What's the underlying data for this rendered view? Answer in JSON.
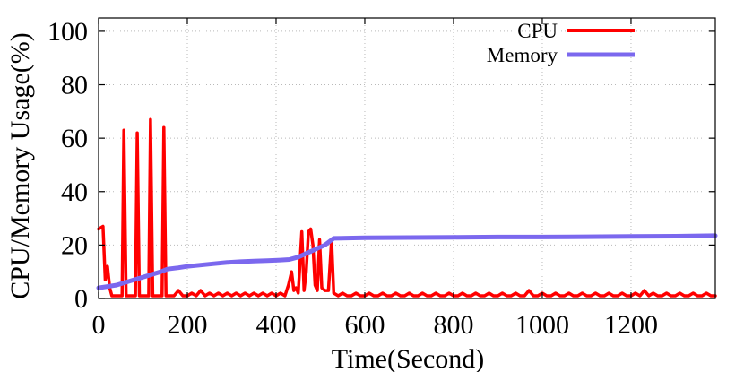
{
  "chart_data": {
    "type": "line",
    "xlabel": "Time(Second)",
    "ylabel": "CPU/Memory Usage(%)",
    "xlim": [
      0,
      1390
    ],
    "ylim": [
      0,
      105
    ],
    "x_ticks": [
      0,
      200,
      400,
      600,
      800,
      1000,
      1200
    ],
    "y_ticks": [
      0,
      20,
      40,
      60,
      80,
      100
    ],
    "grid": true,
    "legend_position": "top-right",
    "series": [
      {
        "name": "CPU",
        "color": "#ff0000",
        "points": [
          [
            0,
            26
          ],
          [
            10,
            27
          ],
          [
            15,
            7
          ],
          [
            20,
            12
          ],
          [
            25,
            4
          ],
          [
            30,
            1
          ],
          [
            35,
            1
          ],
          [
            40,
            1
          ],
          [
            45,
            1
          ],
          [
            50,
            1
          ],
          [
            53,
            1
          ],
          [
            57,
            63
          ],
          [
            62,
            1
          ],
          [
            70,
            1
          ],
          [
            78,
            1
          ],
          [
            83,
            1
          ],
          [
            87,
            62
          ],
          [
            92,
            1
          ],
          [
            100,
            1
          ],
          [
            108,
            1
          ],
          [
            113,
            1
          ],
          [
            117,
            67
          ],
          [
            122,
            1
          ],
          [
            130,
            1
          ],
          [
            138,
            1
          ],
          [
            143,
            1
          ],
          [
            147,
            64
          ],
          [
            152,
            1
          ],
          [
            160,
            1
          ],
          [
            170,
            1
          ],
          [
            180,
            3
          ],
          [
            190,
            1
          ],
          [
            200,
            1
          ],
          [
            210,
            2
          ],
          [
            220,
            1
          ],
          [
            230,
            3
          ],
          [
            240,
            1
          ],
          [
            250,
            2
          ],
          [
            260,
            1
          ],
          [
            270,
            2
          ],
          [
            280,
            1
          ],
          [
            290,
            2
          ],
          [
            300,
            1
          ],
          [
            310,
            2
          ],
          [
            320,
            1
          ],
          [
            330,
            2
          ],
          [
            340,
            1
          ],
          [
            350,
            2
          ],
          [
            360,
            1
          ],
          [
            370,
            2
          ],
          [
            380,
            1
          ],
          [
            390,
            2
          ],
          [
            400,
            1
          ],
          [
            410,
            2
          ],
          [
            420,
            1
          ],
          [
            428,
            5
          ],
          [
            435,
            10
          ],
          [
            440,
            3
          ],
          [
            445,
            4
          ],
          [
            450,
            2
          ],
          [
            458,
            25
          ],
          [
            463,
            3
          ],
          [
            468,
            10
          ],
          [
            473,
            25
          ],
          [
            478,
            26
          ],
          [
            483,
            20
          ],
          [
            488,
            5
          ],
          [
            493,
            3
          ],
          [
            498,
            22
          ],
          [
            503,
            4
          ],
          [
            510,
            3
          ],
          [
            518,
            3
          ],
          [
            525,
            22
          ],
          [
            530,
            2
          ],
          [
            540,
            1
          ],
          [
            550,
            2
          ],
          [
            560,
            1
          ],
          [
            570,
            1
          ],
          [
            580,
            2
          ],
          [
            590,
            1
          ],
          [
            600,
            1
          ],
          [
            610,
            2
          ],
          [
            620,
            1
          ],
          [
            630,
            1
          ],
          [
            640,
            2
          ],
          [
            650,
            1
          ],
          [
            660,
            1
          ],
          [
            670,
            2
          ],
          [
            680,
            1
          ],
          [
            690,
            1
          ],
          [
            700,
            2
          ],
          [
            710,
            1
          ],
          [
            720,
            1
          ],
          [
            730,
            2
          ],
          [
            740,
            1
          ],
          [
            750,
            1
          ],
          [
            760,
            2
          ],
          [
            770,
            1
          ],
          [
            780,
            1
          ],
          [
            790,
            2
          ],
          [
            800,
            1
          ],
          [
            810,
            1
          ],
          [
            820,
            2
          ],
          [
            830,
            1
          ],
          [
            840,
            1
          ],
          [
            850,
            2
          ],
          [
            860,
            1
          ],
          [
            870,
            1
          ],
          [
            880,
            2
          ],
          [
            890,
            1
          ],
          [
            900,
            1
          ],
          [
            910,
            2
          ],
          [
            920,
            1
          ],
          [
            930,
            1
          ],
          [
            940,
            2
          ],
          [
            950,
            1
          ],
          [
            960,
            1
          ],
          [
            970,
            3
          ],
          [
            980,
            1
          ],
          [
            990,
            1
          ],
          [
            1000,
            2
          ],
          [
            1010,
            1
          ],
          [
            1020,
            1
          ],
          [
            1030,
            2
          ],
          [
            1040,
            1
          ],
          [
            1050,
            1
          ],
          [
            1060,
            2
          ],
          [
            1070,
            1
          ],
          [
            1080,
            1
          ],
          [
            1090,
            2
          ],
          [
            1100,
            1
          ],
          [
            1110,
            1
          ],
          [
            1120,
            2
          ],
          [
            1130,
            1
          ],
          [
            1140,
            1
          ],
          [
            1150,
            2
          ],
          [
            1160,
            1
          ],
          [
            1170,
            1
          ],
          [
            1180,
            2
          ],
          [
            1190,
            1
          ],
          [
            1200,
            1
          ],
          [
            1210,
            2
          ],
          [
            1220,
            1
          ],
          [
            1230,
            3
          ],
          [
            1240,
            1
          ],
          [
            1250,
            2
          ],
          [
            1260,
            1
          ],
          [
            1270,
            1
          ],
          [
            1280,
            2
          ],
          [
            1290,
            1
          ],
          [
            1300,
            1
          ],
          [
            1310,
            2
          ],
          [
            1320,
            1
          ],
          [
            1330,
            1
          ],
          [
            1340,
            2
          ],
          [
            1350,
            1
          ],
          [
            1360,
            1
          ],
          [
            1370,
            2
          ],
          [
            1380,
            1
          ],
          [
            1390,
            1
          ]
        ]
      },
      {
        "name": "Memory",
        "color": "#7b68ee",
        "points": [
          [
            0,
            4
          ],
          [
            20,
            4.5
          ],
          [
            40,
            5
          ],
          [
            60,
            6
          ],
          [
            80,
            7
          ],
          [
            100,
            8
          ],
          [
            120,
            9
          ],
          [
            140,
            10
          ],
          [
            155,
            11
          ],
          [
            180,
            11.5
          ],
          [
            200,
            12
          ],
          [
            230,
            12.5
          ],
          [
            260,
            13
          ],
          [
            290,
            13.5
          ],
          [
            320,
            13.8
          ],
          [
            350,
            14
          ],
          [
            380,
            14.2
          ],
          [
            410,
            14.4
          ],
          [
            430,
            14.6
          ],
          [
            450,
            15.5
          ],
          [
            470,
            17
          ],
          [
            490,
            18.5
          ],
          [
            510,
            20
          ],
          [
            530,
            22.5
          ],
          [
            560,
            22.6
          ],
          [
            600,
            22.7
          ],
          [
            700,
            22.8
          ],
          [
            800,
            22.9
          ],
          [
            900,
            23
          ],
          [
            1000,
            23
          ],
          [
            1100,
            23.1
          ],
          [
            1200,
            23.2
          ],
          [
            1300,
            23.3
          ],
          [
            1390,
            23.5
          ]
        ]
      }
    ]
  }
}
